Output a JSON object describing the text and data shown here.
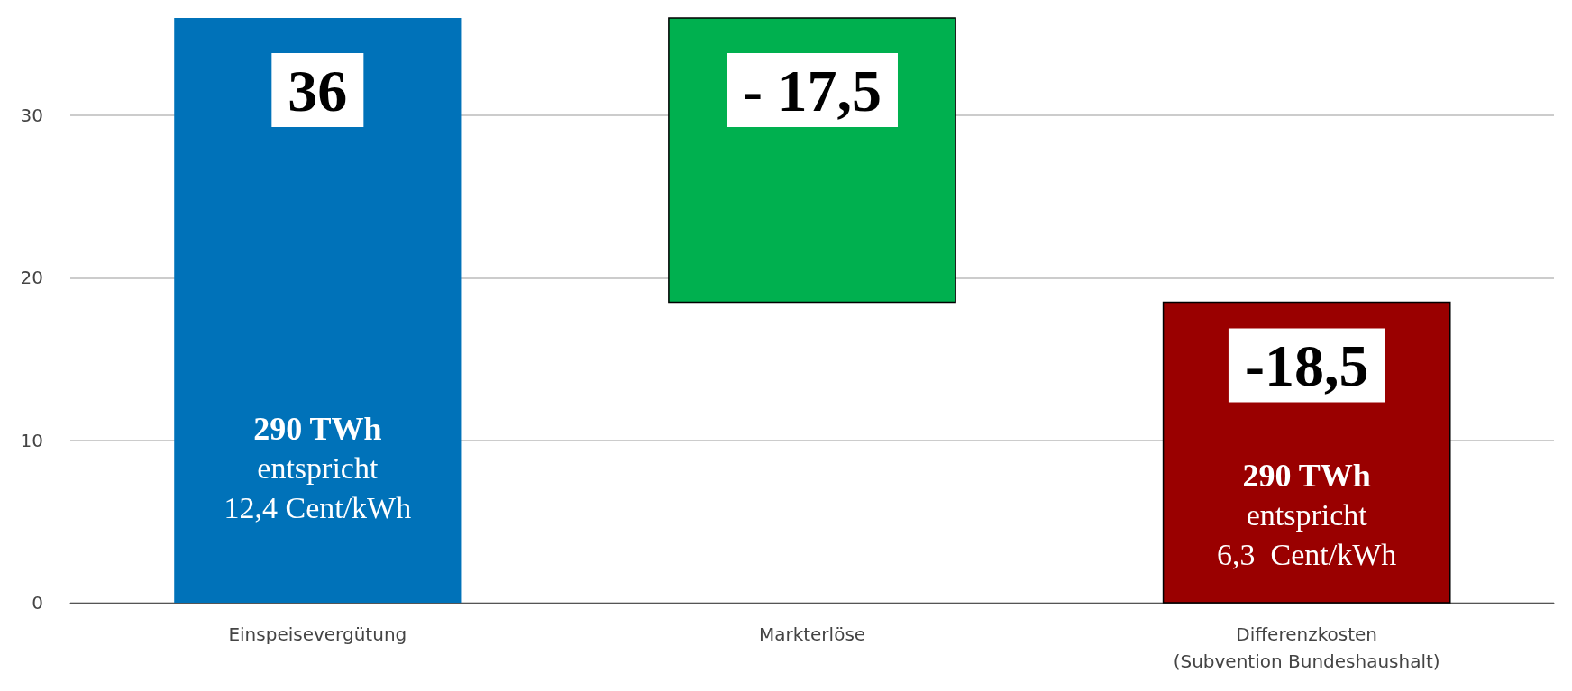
{
  "chart_data": {
    "type": "bar",
    "categories": [
      "Einspeisevergütung",
      "Markterlöse",
      "Differenzkosten\n(Subvention Bundeshaushalt)"
    ],
    "values": [
      36,
      -17.5,
      -18.5
    ],
    "base": [
      0,
      36,
      18.5
    ],
    "colors": [
      "#0072b9",
      "#00b04f",
      "#9a0000"
    ],
    "value_labels": [
      "36",
      "- 17,5",
      "-18,5"
    ],
    "ylim": [
      0,
      36
    ],
    "yticks": [
      0,
      10,
      20,
      30
    ],
    "grid": "y",
    "annotations": [
      "290 TWh\nentspricht\n12,4 Cent/kWh",
      "290 TWh\nentspricht\n6,3  Cent/kWh"
    ]
  }
}
